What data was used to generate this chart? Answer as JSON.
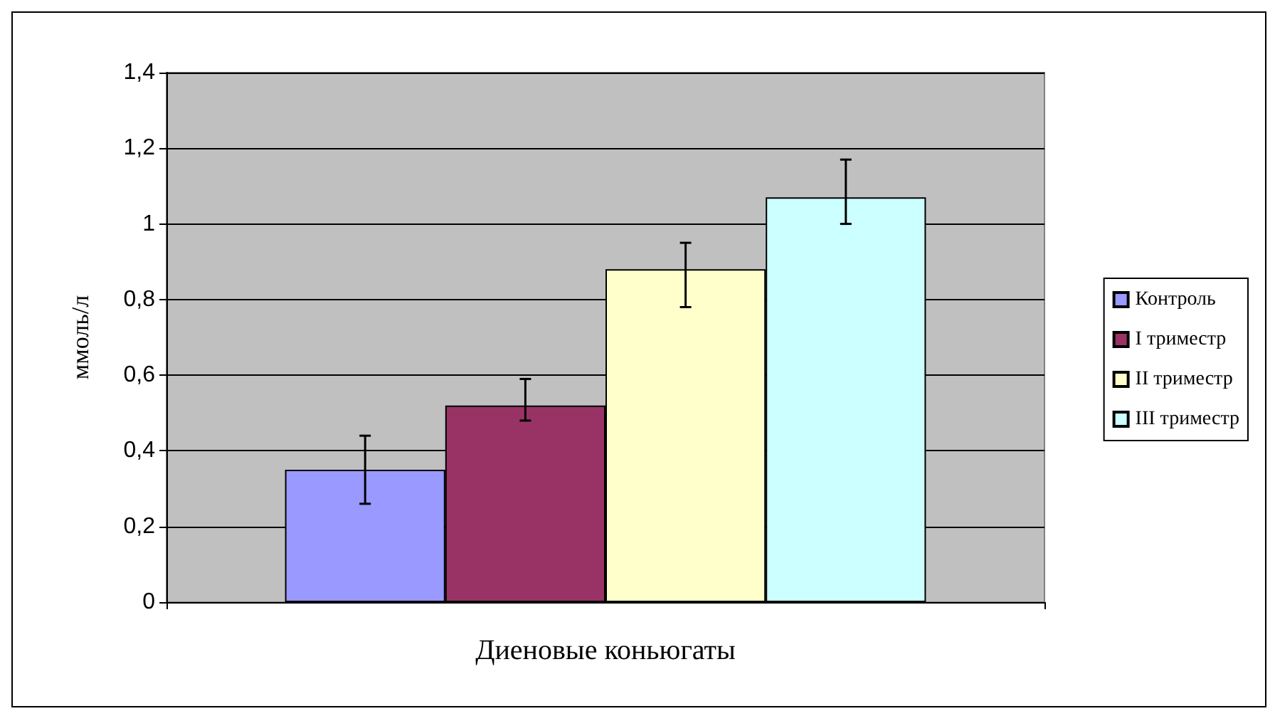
{
  "chart_data": {
    "type": "bar",
    "ylabel": "ммоль/л",
    "categories": [
      "Диеновые коньюгаты"
    ],
    "series": [
      {
        "name": "Контроль",
        "color": "#9999ff",
        "values": [
          0.35
        ],
        "errors": [
          [
            0.26,
            0.44
          ]
        ]
      },
      {
        "name": "I триместр",
        "color": "#993366",
        "values": [
          0.52
        ],
        "errors": [
          [
            0.48,
            0.59
          ]
        ]
      },
      {
        "name": "II триместр",
        "color": "#ffffcc",
        "values": [
          0.88
        ],
        "errors": [
          [
            0.78,
            0.95
          ]
        ]
      },
      {
        "name": "III триместр",
        "color": "#ccffff",
        "values": [
          1.07
        ],
        "errors": [
          [
            1.0,
            1.17
          ]
        ]
      }
    ],
    "ylim": [
      0,
      1.4
    ],
    "yticks": [
      0,
      {
        "value": 0.2,
        "label": "0,2"
      },
      {
        "value": 0.4,
        "label": "0,4"
      },
      {
        "value": 0.6,
        "label": "0,6"
      },
      {
        "value": 0.8,
        "label": "0,8"
      },
      1,
      {
        "value": 1.2,
        "label": "1,2"
      },
      {
        "value": 1.4,
        "label": "1,4"
      }
    ],
    "grid": "y",
    "legend": "right"
  }
}
